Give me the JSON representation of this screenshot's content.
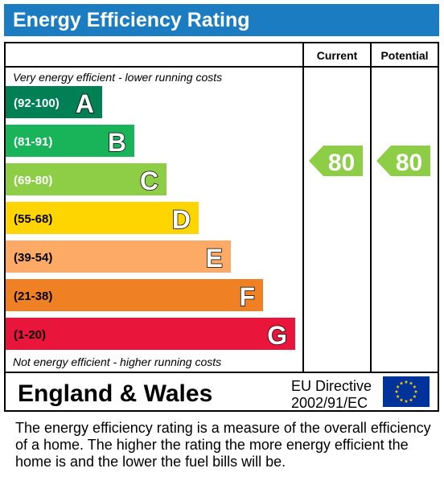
{
  "title": "Energy Efficiency Rating",
  "columns": {
    "current": "Current",
    "potential": "Potential"
  },
  "top_caption": "Very energy efficient - lower running costs",
  "bottom_caption": "Not energy efficient - higher running costs",
  "region": "England & Wales",
  "directive_line1": "EU Directive",
  "directive_line2": "2002/91/EC",
  "note": "The energy efficiency rating is a measure of the overall efficiency of a home.  The higher the rating the more energy efficient the home is and the lower the fuel bills will be.",
  "chart_data": {
    "type": "bar",
    "categories": [
      "A",
      "B",
      "C",
      "D",
      "E",
      "F",
      "G"
    ],
    "bands": [
      {
        "letter": "A",
        "range": "(92-100)",
        "color": "#008054",
        "text_color": "#ffffff"
      },
      {
        "letter": "B",
        "range": "(81-91)",
        "color": "#19b459",
        "text_color": "#ffffff"
      },
      {
        "letter": "C",
        "range": "(69-80)",
        "color": "#8dce46",
        "text_color": "#ffffff"
      },
      {
        "letter": "D",
        "range": "(55-68)",
        "color": "#ffd500",
        "text_color": "#000000"
      },
      {
        "letter": "E",
        "range": "(39-54)",
        "color": "#fcaa65",
        "text_color": "#000000"
      },
      {
        "letter": "F",
        "range": "(21-38)",
        "color": "#ef8023",
        "text_color": "#000000"
      },
      {
        "letter": "G",
        "range": "(1-20)",
        "color": "#e9153b",
        "text_color": "#000000"
      }
    ],
    "current": {
      "value": 80,
      "band": "C",
      "color": "#8dce46"
    },
    "potential": {
      "value": 80,
      "band": "C",
      "color": "#8dce46"
    }
  }
}
